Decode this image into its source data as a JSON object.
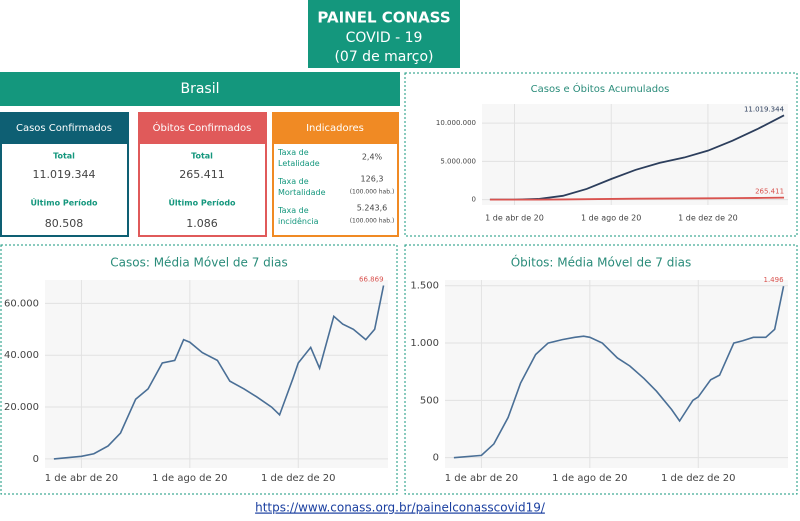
{
  "header": {
    "title": "PAINEL CONASS",
    "subtitle": "COVID - 19",
    "date": "(07 de março)"
  },
  "region": "Brasil",
  "cards": [
    {
      "title": "Casos Confirmados",
      "total_label": "Total",
      "total": "11.019.344",
      "period_label": "Último Período",
      "period": "80.508"
    },
    {
      "title": "Óbitos Confirmados",
      "total_label": "Total",
      "total": "265.411",
      "period_label": "Último Período",
      "period": "1.086"
    }
  ],
  "indicators": {
    "title": "Indicadores",
    "rows": [
      {
        "label": "Taxa de Letalidade",
        "value": "2,4%"
      },
      {
        "label": "Taxa de Mortalidade",
        "value": "126,3",
        "note": "(100.000 hab.)"
      },
      {
        "label": "Taxa de incidência",
        "value": "5.243,6",
        "note": "(100.000 hab.)"
      }
    ]
  },
  "chart_data": [
    {
      "type": "line",
      "title": "Casos e Óbitos Acumulados",
      "x": [
        "2020-03-01",
        "2020-04-01",
        "2020-05-01",
        "2020-06-01",
        "2020-07-01",
        "2020-08-01",
        "2020-09-01",
        "2020-10-01",
        "2020-11-01",
        "2020-12-01",
        "2021-01-01",
        "2021-02-01",
        "2021-03-07"
      ],
      "series": [
        {
          "name": "Casos",
          "color": "#2c3e5c",
          "values": [
            0,
            6000,
            90000,
            500000,
            1400000,
            2700000,
            3900000,
            4800000,
            5500000,
            6400000,
            7700000,
            9200000,
            11019344
          ],
          "last_label": "11.019.344"
        },
        {
          "name": "Óbitos",
          "color": "#d9534f",
          "values": [
            0,
            200,
            6000,
            29000,
            60000,
            93000,
            122000,
            144000,
            160000,
            174000,
            195000,
            225000,
            265411
          ],
          "last_label": "265.411"
        }
      ],
      "xlim": [
        "2020-02-20",
        "2021-03-12"
      ],
      "ylim": [
        -700000,
        12500000
      ],
      "yticks": [
        0,
        {
          "value": 5000000,
          "label": "5.000.000"
        },
        {
          "value": 10000000,
          "label": "10.000.000"
        }
      ],
      "xticks": [
        {
          "value": "2020-04-01",
          "label": "1 de abr de 20"
        },
        {
          "value": "2020-08-01",
          "label": "1 de ago de 20"
        },
        {
          "value": "2020-12-01",
          "label": "1 de dez de 20"
        }
      ],
      "grid": true
    },
    {
      "type": "line",
      "title": "Casos: Média Móvel de 7 dias",
      "x": [
        "2020-03-01",
        "2020-04-01",
        "2020-04-15",
        "2020-05-01",
        "2020-05-15",
        "2020-06-01",
        "2020-06-15",
        "2020-07-01",
        "2020-07-15",
        "2020-07-25",
        "2020-08-01",
        "2020-08-15",
        "2020-09-01",
        "2020-09-15",
        "2020-10-01",
        "2020-10-15",
        "2020-11-01",
        "2020-11-10",
        "2020-11-25",
        "2020-12-01",
        "2020-12-15",
        "2020-12-25",
        "2021-01-10",
        "2021-01-20",
        "2021-02-01",
        "2021-02-15",
        "2021-02-25",
        "2021-03-07"
      ],
      "series": [
        {
          "name": "Casos",
          "color": "#4a6f96",
          "values": [
            0,
            1000,
            2000,
            5000,
            10000,
            23000,
            27000,
            37000,
            38000,
            46000,
            45000,
            41000,
            38000,
            30000,
            27000,
            24000,
            20000,
            17000,
            31000,
            37000,
            43000,
            35000,
            55000,
            52000,
            50000,
            46000,
            50000,
            66869
          ],
          "last_label": "66.869"
        }
      ],
      "xlim": [
        "2020-02-20",
        "2021-03-12"
      ],
      "ylim": [
        -3500,
        69000
      ],
      "yticks": [
        0,
        {
          "value": 20000,
          "label": "20.000"
        },
        {
          "value": 40000,
          "label": "40.000"
        },
        {
          "value": 60000,
          "label": "60.000"
        }
      ],
      "xticks": [
        {
          "value": "2020-04-01",
          "label": "1 de abr de 20"
        },
        {
          "value": "2020-08-01",
          "label": "1 de ago de 20"
        },
        {
          "value": "2020-12-01",
          "label": "1 de dez de 20"
        }
      ],
      "grid": true
    },
    {
      "type": "line",
      "title": "Óbitos: Média Móvel de 7 dias",
      "x": [
        "2020-03-01",
        "2020-04-01",
        "2020-04-15",
        "2020-05-01",
        "2020-05-15",
        "2020-06-01",
        "2020-06-15",
        "2020-07-01",
        "2020-07-15",
        "2020-07-25",
        "2020-08-01",
        "2020-08-15",
        "2020-09-01",
        "2020-09-15",
        "2020-10-01",
        "2020-10-15",
        "2020-11-01",
        "2020-11-10",
        "2020-11-25",
        "2020-12-01",
        "2020-12-15",
        "2020-12-25",
        "2021-01-10",
        "2021-01-20",
        "2021-02-01",
        "2021-02-15",
        "2021-02-25",
        "2021-03-07"
      ],
      "series": [
        {
          "name": "Óbitos",
          "color": "#4a6f96",
          "values": [
            0,
            20,
            120,
            350,
            650,
            900,
            1000,
            1030,
            1050,
            1060,
            1050,
            1000,
            870,
            800,
            690,
            580,
            420,
            320,
            500,
            530,
            680,
            720,
            1000,
            1020,
            1050,
            1050,
            1120,
            1496
          ],
          "last_label": "1.496"
        }
      ],
      "xlim": [
        "2020-02-20",
        "2021-03-12"
      ],
      "ylim": [
        -90,
        1550
      ],
      "yticks": [
        0,
        500,
        {
          "value": 1000,
          "label": "1.000"
        },
        {
          "value": 1500,
          "label": "1.500"
        }
      ],
      "xticks": [
        {
          "value": "2020-04-01",
          "label": "1 de abr de 20"
        },
        {
          "value": "2020-08-01",
          "label": "1 de ago de 20"
        },
        {
          "value": "2020-12-01",
          "label": "1 de dez de 20"
        }
      ],
      "grid": true
    }
  ],
  "footer": {
    "url": "https://www.conass.org.br/painelconasscovid19/"
  }
}
